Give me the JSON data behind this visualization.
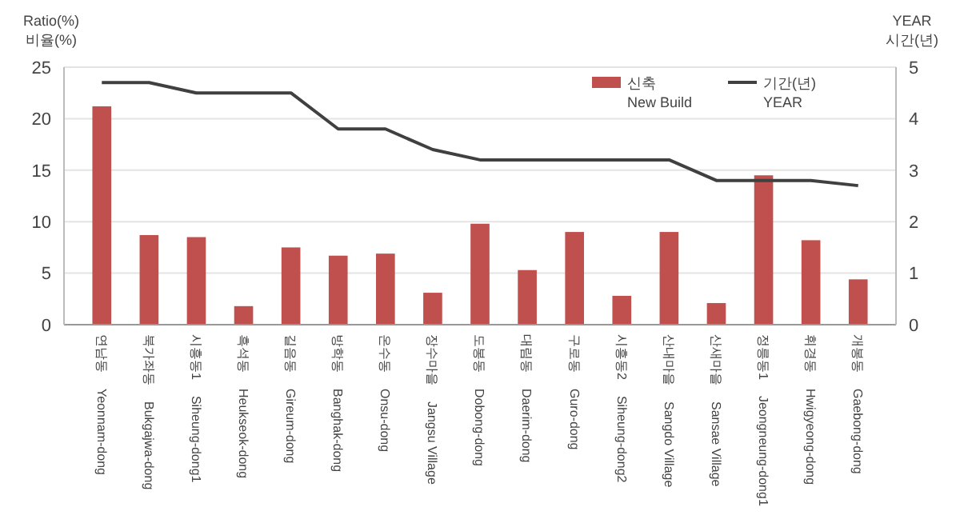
{
  "chart_data": {
    "type": "bar",
    "ylabel": "Ratio(%)\n비율(%)",
    "y2label": "YEAR\n시간(년)",
    "categories": [
      "연남동\tYeonnam-dong",
      "북가좌동\tBukgajwa-dong",
      "시흥동1\tSiheung-dong1",
      "흑석동\tHeukseok-dong",
      "길음동\tGireum-dong",
      "방학동\tBanghak-dong",
      "온수동\tOnsu-dong",
      "장수마을\tJangsu Village",
      "도봉동\tDobong-dong",
      "대림동\tDaerim-dong",
      "구로동\tGuro-dong",
      "시흥동2\tSiheung-dong2",
      "산내마을\tSangdo Village",
      "산새마을\tSansae Village",
      "정릉동1\tJeongneung-dong1",
      "휘경동\tHwigyeong-dong",
      "개봉동\tGaebong-dong"
    ],
    "series": [
      {
        "name": "신축\nNew Build",
        "color": "#c0504d",
        "values": [
          21.2,
          8.7,
          8.5,
          1.8,
          7.5,
          6.7,
          6.9,
          3.1,
          9.8,
          5.3,
          9.0,
          2.8,
          9.0,
          2.1,
          14.5,
          8.2,
          4.4
        ]
      },
      {
        "name": "기간(년)\nYEAR",
        "type": "line",
        "axis": "y2",
        "color": "#404040",
        "values": [
          4.7,
          4.7,
          4.5,
          4.5,
          4.5,
          3.8,
          3.8,
          3.4,
          3.2,
          3.2,
          3.2,
          3.2,
          3.2,
          2.8,
          2.8,
          2.8,
          2.7
        ]
      }
    ],
    "ylim": [
      0,
      25
    ],
    "yticks": [
      0,
      5,
      10,
      15,
      20,
      25
    ],
    "y2lim": [
      0,
      5
    ],
    "y2ticks": [
      0,
      1,
      2,
      3,
      4,
      5
    ],
    "grid": "y",
    "legend": "top right",
    "marker": "none",
    "line_style": "solid"
  }
}
